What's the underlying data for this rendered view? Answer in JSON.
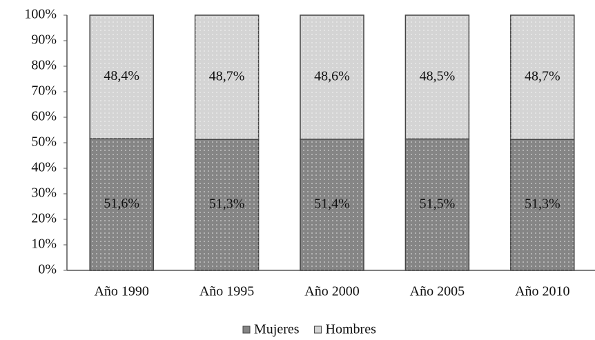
{
  "chart_data": {
    "type": "stacked_bar",
    "categories": [
      "Año 1990",
      "Año 1995",
      "Año 2000",
      "Año 2005",
      "Año 2010"
    ],
    "series": [
      {
        "name": "Mujeres",
        "color": "#858585",
        "values": [
          51.6,
          51.3,
          51.4,
          51.5,
          51.3
        ],
        "value_labels": [
          "51,6%",
          "51,3%",
          "51,4%",
          "51,5%",
          "51,3%"
        ]
      },
      {
        "name": "Hombres",
        "color": "#d4d4d4",
        "values": [
          48.4,
          48.7,
          48.6,
          48.5,
          48.7
        ],
        "value_labels": [
          "48,4%",
          "48,7%",
          "48,6%",
          "48,5%",
          "48,7%"
        ]
      }
    ],
    "ylim": [
      0,
      100
    ],
    "yticks": [
      {
        "value": 0,
        "label": "0%"
      },
      {
        "value": 10,
        "label": "10%"
      },
      {
        "value": 20,
        "label": "20%"
      },
      {
        "value": 30,
        "label": "30%"
      },
      {
        "value": 40,
        "label": "40%"
      },
      {
        "value": 50,
        "label": "50%"
      },
      {
        "value": 60,
        "label": "60%"
      },
      {
        "value": 70,
        "label": "70%"
      },
      {
        "value": 80,
        "label": "80%"
      },
      {
        "value": 90,
        "label": "90%"
      },
      {
        "value": 100,
        "label": "100%"
      }
    ],
    "legend": "bottom"
  }
}
